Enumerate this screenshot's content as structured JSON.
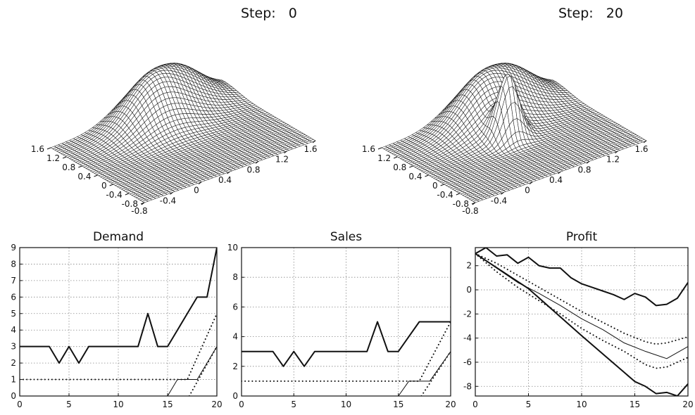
{
  "steps": {
    "left": {
      "label": "Step:",
      "value": "0"
    },
    "right": {
      "label": "Step:",
      "value": "20"
    }
  },
  "chart_data": [
    {
      "type": "surface",
      "title": "Step:   0",
      "axis_ticks": [
        "-0.8",
        "-0.4",
        "0",
        "0.4",
        "0.8",
        "1.2",
        "1.6"
      ],
      "xlim": [
        -0.8,
        1.6
      ],
      "ylim": [
        -0.8,
        1.6
      ],
      "peaks": [
        {
          "x": 0.4,
          "y": 1.2,
          "height": 1.0,
          "width": 0.35
        },
        {
          "x": 0.95,
          "y": 1.55,
          "height": 0.75,
          "width": 0.35
        }
      ]
    },
    {
      "type": "surface",
      "title": "Step:   20",
      "axis_ticks": [
        "-0.8",
        "-0.4",
        "0",
        "0.4",
        "0.8",
        "1.2",
        "1.6"
      ],
      "xlim": [
        -0.8,
        1.6
      ],
      "ylim": [
        -0.8,
        1.6
      ],
      "peaks": [
        {
          "x": 0.4,
          "y": 1.2,
          "height": 1.0,
          "width": 0.35
        },
        {
          "x": 0.95,
          "y": 1.55,
          "height": 0.75,
          "width": 0.35
        },
        {
          "x": 0.4,
          "y": 0.55,
          "height": 1.35,
          "width": 0.13
        }
      ]
    },
    {
      "type": "line",
      "title": "Demand",
      "xlim": [
        0,
        20
      ],
      "ylim": [
        0,
        9
      ],
      "xticks": [
        0,
        5,
        10,
        15,
        20
      ],
      "yticks": [
        0,
        1,
        2,
        3,
        4,
        5,
        6,
        7,
        8,
        9
      ],
      "grid": true,
      "series": [
        {
          "style": "thick",
          "x": [
            0,
            1,
            2,
            3,
            4,
            5,
            6,
            7,
            8,
            9,
            10,
            11,
            12,
            13,
            14,
            15,
            16,
            17,
            18,
            19,
            20
          ],
          "y": [
            3,
            3,
            3,
            3,
            2,
            3,
            2,
            3,
            3,
            3,
            3,
            3,
            3,
            5,
            3,
            3,
            4,
            5,
            6,
            6,
            9
          ]
        },
        {
          "style": "thin",
          "x": [
            15,
            16,
            17,
            18,
            19,
            20
          ],
          "y": [
            0,
            1,
            1,
            1,
            2,
            3
          ]
        },
        {
          "style": "dotted",
          "x": [
            0,
            15,
            17,
            20
          ],
          "y": [
            1,
            1,
            1,
            5
          ]
        },
        {
          "style": "dotted",
          "x": [
            17.2,
            20
          ],
          "y": [
            0,
            3
          ]
        }
      ]
    },
    {
      "type": "line",
      "title": "Sales",
      "xlim": [
        0,
        20
      ],
      "ylim": [
        0,
        10
      ],
      "xticks": [
        0,
        5,
        10,
        15,
        20
      ],
      "yticks": [
        0,
        2,
        4,
        6,
        8,
        10
      ],
      "grid": true,
      "series": [
        {
          "style": "thick",
          "x": [
            0,
            1,
            2,
            3,
            4,
            5,
            6,
            7,
            8,
            9,
            10,
            11,
            12,
            13,
            14,
            15,
            16,
            17,
            18,
            19,
            20
          ],
          "y": [
            3,
            3,
            3,
            3,
            2,
            3,
            2,
            3,
            3,
            3,
            3,
            3,
            3,
            5,
            3,
            3,
            4,
            5,
            5,
            5,
            5
          ]
        },
        {
          "style": "thin",
          "x": [
            15,
            16,
            17,
            18,
            19,
            20
          ],
          "y": [
            0,
            1,
            1,
            1,
            2,
            3
          ]
        },
        {
          "style": "dotted",
          "x": [
            0,
            15,
            17,
            20
          ],
          "y": [
            1,
            1,
            1,
            5
          ]
        },
        {
          "style": "dotted",
          "x": [
            17.2,
            20
          ],
          "y": [
            0,
            3
          ]
        }
      ]
    },
    {
      "type": "line",
      "title": "Profit",
      "xlim": [
        0,
        20
      ],
      "ylim": [
        -8.8,
        3.5
      ],
      "xticks": [
        0,
        5,
        10,
        15,
        20
      ],
      "yticks": [
        2,
        0,
        -2,
        -4,
        -6,
        -8
      ],
      "grid": true,
      "series": [
        {
          "style": "thick",
          "x": [
            0,
            1,
            2,
            3,
            4,
            5,
            6,
            7,
            8,
            9,
            10,
            11,
            12,
            13,
            14,
            15,
            16,
            17,
            18,
            19,
            20
          ],
          "y": [
            3,
            3.5,
            2.8,
            2.9,
            2.2,
            2.7,
            2.0,
            1.8,
            1.8,
            1.0,
            0.5,
            0.2,
            -0.1,
            -0.4,
            -0.8,
            -0.3,
            -0.6,
            -1.3,
            -1.2,
            -0.7,
            0.6
          ]
        },
        {
          "style": "thick",
          "x": [
            0,
            5,
            10,
            15,
            16,
            17,
            18,
            19,
            20
          ],
          "y": [
            3,
            0.1,
            -3.8,
            -7.6,
            -8.0,
            -8.6,
            -8.5,
            -8.8,
            -7.8
          ]
        },
        {
          "style": "thin",
          "x": [
            0,
            2,
            4,
            6,
            8,
            10,
            12,
            14,
            16,
            18,
            20
          ],
          "y": [
            3,
            1.8,
            0.6,
            -0.3,
            -1.3,
            -2.4,
            -3.3,
            -4.4,
            -5.1,
            -5.7,
            -4.7
          ]
        },
        {
          "style": "dotted",
          "x": [
            0,
            2,
            4,
            6,
            8,
            10,
            12,
            14,
            16,
            17,
            18,
            20
          ],
          "y": [
            3,
            2.2,
            1.2,
            0.2,
            -0.8,
            -1.8,
            -2.7,
            -3.6,
            -4.3,
            -4.5,
            -4.4,
            -3.9
          ]
        },
        {
          "style": "dotted",
          "x": [
            0,
            2,
            4,
            6,
            8,
            10,
            12,
            14,
            16,
            17,
            18,
            20
          ],
          "y": [
            3,
            1.5,
            0.2,
            -0.9,
            -2.0,
            -3.2,
            -4.2,
            -5.1,
            -6.2,
            -6.5,
            -6.4,
            -5.6
          ]
        }
      ]
    }
  ]
}
